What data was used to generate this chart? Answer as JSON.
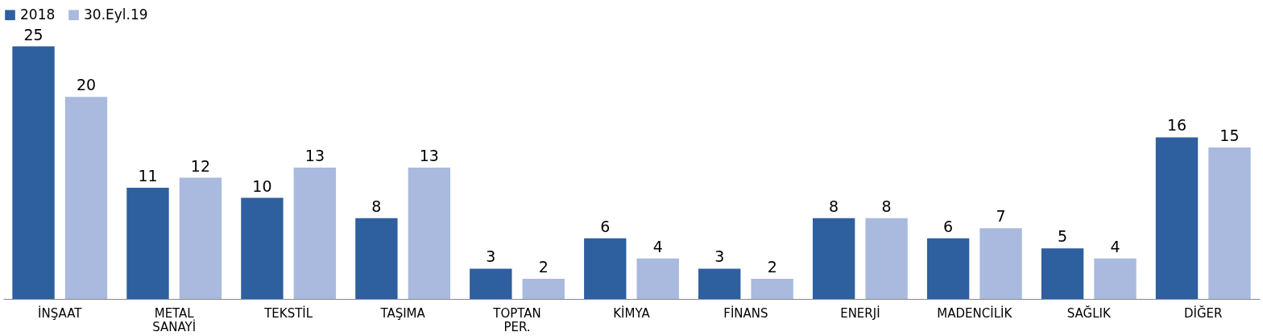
{
  "chart_data": {
    "type": "bar",
    "categories": [
      "İNŞAAT",
      "METAL SANAYİ",
      "TEKSTİL",
      "TAŞIMA",
      "TOPTAN PER.",
      "KİMYA",
      "FİNANS",
      "ENERJİ",
      "MADENCİLİK",
      "SAĞLIK",
      "DİĞER"
    ],
    "series": [
      {
        "name": "2018",
        "color": "#2e5f9e",
        "values": [
          25,
          11,
          10,
          8,
          3,
          6,
          3,
          8,
          6,
          5,
          16
        ]
      },
      {
        "name": "30.Eyl.19",
        "color": "#a9bade",
        "values": [
          20,
          12,
          13,
          13,
          2,
          4,
          2,
          8,
          7,
          4,
          15
        ]
      }
    ],
    "data_labels": true,
    "legend": "top",
    "grid": false,
    "tick_labels": "x"
  }
}
